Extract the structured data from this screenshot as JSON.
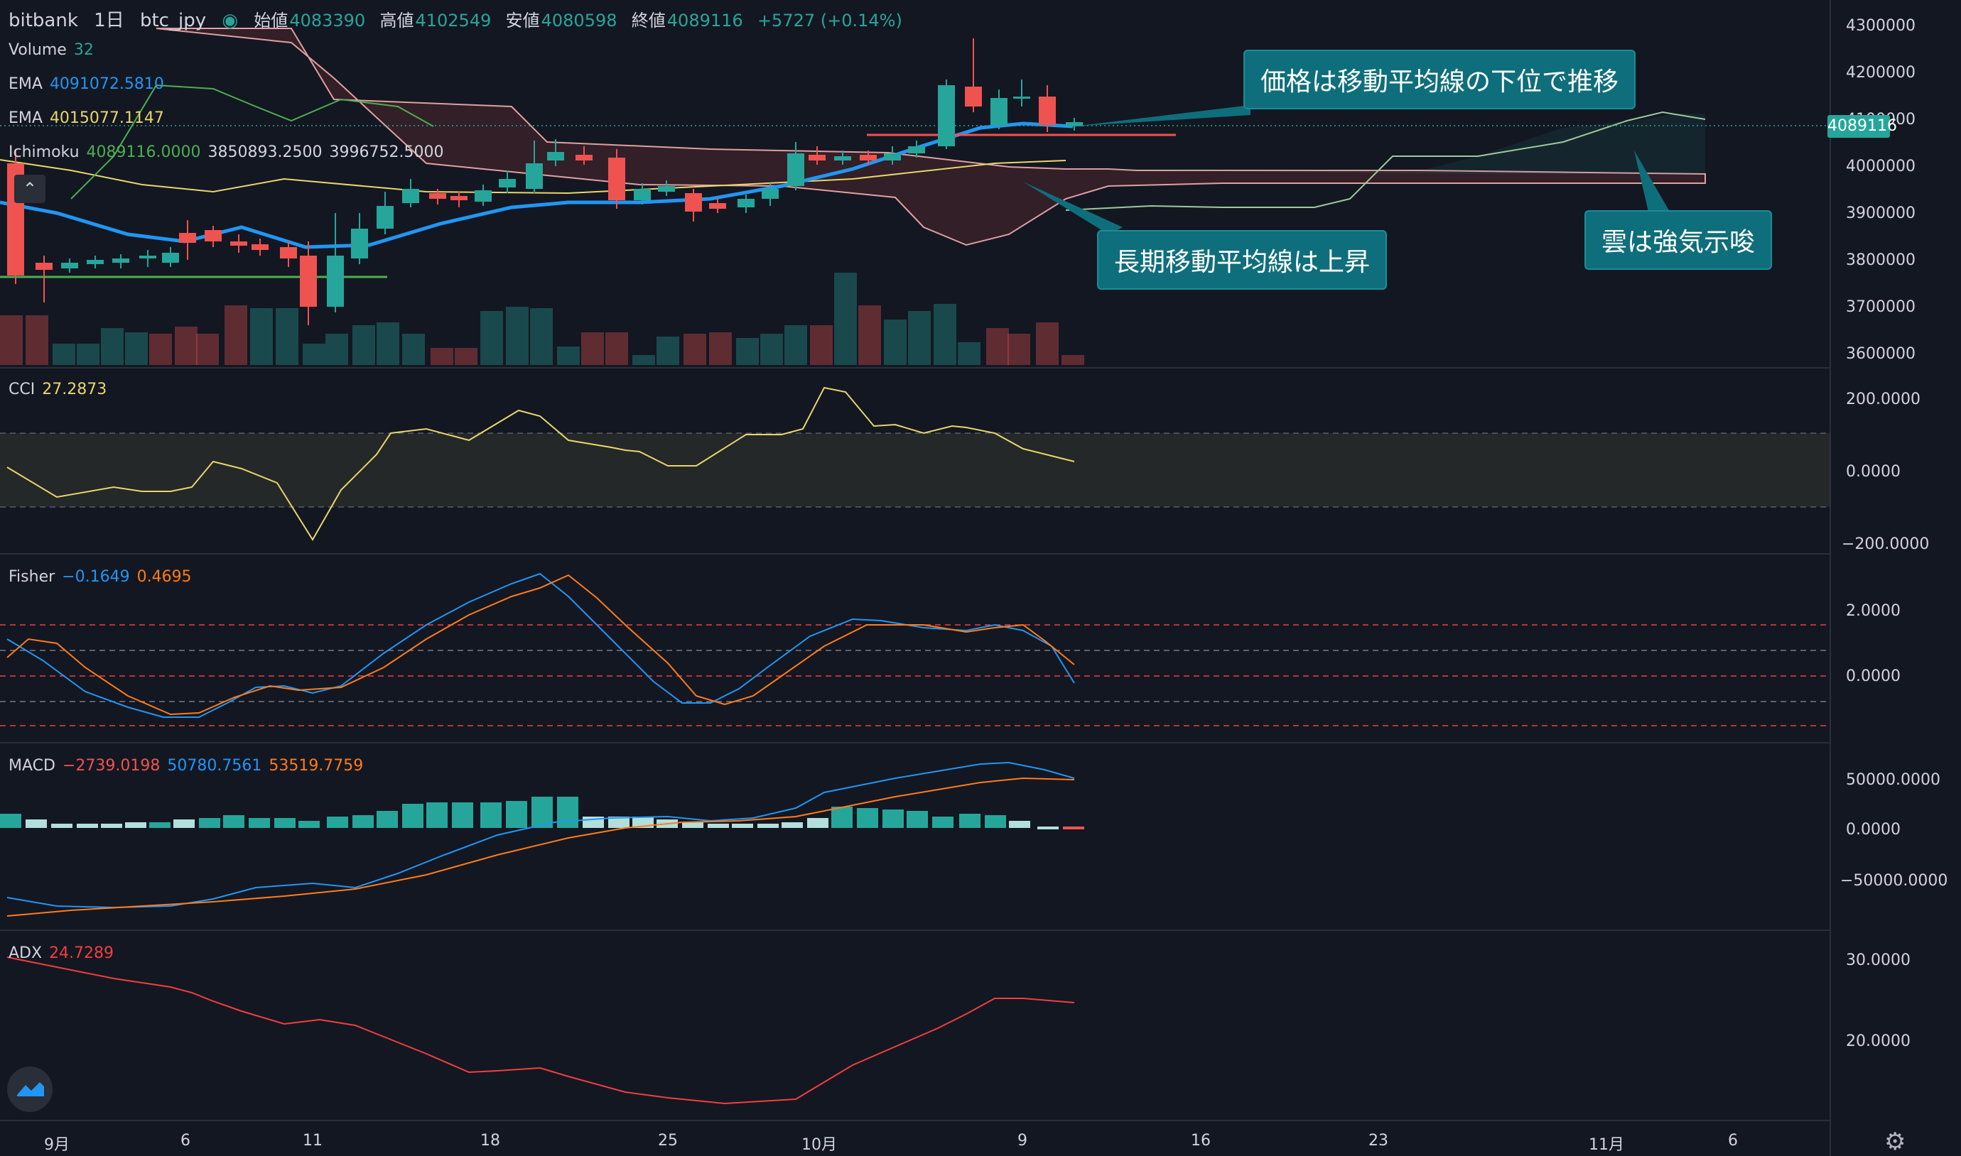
{
  "header": {
    "exchange": "bitbank",
    "interval": "1日",
    "symbol": "btc_jpy",
    "open_label": "始値",
    "open": "4083390",
    "high_label": "高値",
    "high": "4102549",
    "low_label": "安値",
    "low": "4080598",
    "close_label": "終値",
    "close": "4089116",
    "change": "+5727 (+0.14%)"
  },
  "legends": {
    "volume": {
      "name": "Volume",
      "value": "32"
    },
    "ema1": {
      "name": "EMA",
      "value": "4091072.5810"
    },
    "ema2": {
      "name": "EMA",
      "value": "4015077.1147"
    },
    "ichimoku": {
      "name": "Ichimoku",
      "v1": "4089116.0000",
      "v2": "3850893.2500",
      "v3": "3996752.5000"
    },
    "cci": {
      "name": "CCI",
      "value": "27.2873"
    },
    "fisher": {
      "name": "Fisher",
      "v1": "−0.1649",
      "v2": "0.4695"
    },
    "macd": {
      "name": "MACD",
      "v1": "−2739.0198",
      "v2": "50780.7561",
      "v3": "53519.7759"
    },
    "adx": {
      "name": "ADX",
      "value": "24.7289"
    }
  },
  "callouts": {
    "price_below": "価格は移動平均線の下位で推移",
    "long_ma": "長期移動平均線は上昇",
    "cloud": "雲は強気示唆"
  },
  "price_axis": [
    "4300000",
    "4200000",
    "4100000",
    "4000000",
    "3900000",
    "3800000",
    "3700000",
    "3600000"
  ],
  "current_price_tag": "4089116",
  "cci_axis": [
    "200.0000",
    "0.0000",
    "−200.0000"
  ],
  "fisher_axis": [
    "2.0000",
    "0.0000"
  ],
  "macd_axis": [
    "50000.0000",
    "0.0000",
    "−50000.0000"
  ],
  "adx_axis": [
    "30.0000",
    "20.0000"
  ],
  "time_axis": [
    "9月",
    "6",
    "11",
    "18",
    "25",
    "10月",
    "9",
    "16",
    "23",
    "11月",
    "6"
  ],
  "colors": {
    "up": "#26a69a",
    "down": "#ef5350",
    "ema_fast": "#2196f3",
    "ema_slow": "#e8d66a",
    "ichimoku_green": "#4caf50",
    "cloud_line": "#e0a0a0",
    "cci": "#e8d66a",
    "fisher1": "#2196f3",
    "fisher2": "#ff7b1a",
    "adx": "#f23e3e"
  },
  "chart_data": {
    "type": "candlestick",
    "series": [
      {
        "name": "btc_jpy",
        "ohlc_last": {
          "open": 4083390,
          "high": 4102549,
          "low": 4080598,
          "close": 4089116
        }
      },
      {
        "name": "EMA",
        "value_last": 4091072.581
      },
      {
        "name": "EMA",
        "value_last": 4015077.1147
      },
      {
        "name": "CCI",
        "value_last": 27.2873
      },
      {
        "name": "Fisher",
        "values_last": [
          -0.1649,
          0.4695
        ]
      },
      {
        "name": "MACD",
        "values_last": [
          -2739.0198,
          50780.7561,
          53519.7759
        ]
      },
      {
        "name": "ADX",
        "value_last": 24.7289
      }
    ],
    "ylim": [
      3560000,
      4330000
    ]
  }
}
